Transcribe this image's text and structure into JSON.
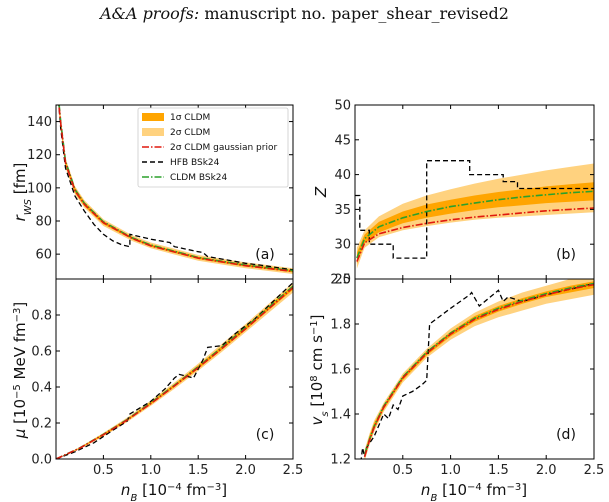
{
  "header": {
    "journal": "A&A proofs:",
    "rest": "manuscript no. paper_shear_revised2"
  },
  "colors": {
    "band1": "#ffa500",
    "band2": "#ffd27f",
    "gauss": "#e0190e",
    "hfb": "#000000",
    "cldm": "#2ca02c"
  },
  "legend": [
    {
      "key": "band1",
      "label": "1σ CLDM"
    },
    {
      "key": "band2",
      "label": "2σ CLDM"
    },
    {
      "key": "gauss",
      "label": "2σ CLDM gaussian prior"
    },
    {
      "key": "hfb",
      "label": "HFB BSk24"
    },
    {
      "key": "cldm",
      "label": "CLDM BSk24"
    }
  ],
  "chart_data": [
    {
      "type": "line",
      "panel": "(a)",
      "xlabel": "n_B [10^-4 fm^-3]",
      "ylabel": "r_WS [fm]",
      "xlim": [
        0.0,
        2.5
      ],
      "ylim": [
        45,
        150
      ],
      "xticks": [
        "0.5",
        "1.0",
        "1.5",
        "2.0",
        "2.5"
      ],
      "yticks": [
        60,
        80,
        100,
        120,
        140
      ],
      "band2": {
        "x": [
          0.02,
          0.05,
          0.1,
          0.2,
          0.3,
          0.5,
          0.8,
          1.0,
          1.5,
          2.0,
          2.5
        ],
        "low": [
          152,
          135,
          112,
          96,
          88,
          77,
          68,
          63.5,
          56,
          51.5,
          48
        ],
        "high": [
          162,
          143,
          118,
          101,
          92.5,
          81,
          71.5,
          67,
          59.5,
          55,
          51.5
        ]
      },
      "band1": {
        "x": [
          0.02,
          0.05,
          0.1,
          0.2,
          0.3,
          0.5,
          0.8,
          1.0,
          1.5,
          2.0,
          2.5
        ],
        "low": [
          154,
          137,
          113.5,
          97,
          89,
          78,
          69,
          64.5,
          57,
          52.5,
          49
        ],
        "high": [
          160,
          141,
          116.5,
          100,
          91.5,
          80,
          70.5,
          66,
          58.5,
          54,
          50.5
        ]
      },
      "series": [
        {
          "key": "gauss",
          "x": [
            0.02,
            0.05,
            0.1,
            0.2,
            0.3,
            0.5,
            0.8,
            1.0,
            1.5,
            2.0,
            2.5
          ],
          "y": [
            156,
            139,
            115,
            98.3,
            90,
            79,
            69.6,
            65,
            57.6,
            53,
            49.6
          ]
        },
        {
          "key": "cldm",
          "x": [
            0.02,
            0.05,
            0.1,
            0.2,
            0.3,
            0.5,
            0.8,
            1.0,
            1.5,
            2.0,
            2.5
          ],
          "y": [
            158,
            140,
            116,
            99,
            90.7,
            79.5,
            70,
            65.5,
            58,
            53.4,
            50
          ]
        },
        {
          "key": "hfb",
          "step": true,
          "x": [
            0.02,
            0.05,
            0.1,
            0.2,
            0.3,
            0.4,
            0.5,
            0.6,
            0.7,
            0.78,
            0.78,
            1.0,
            1.2,
            1.25,
            1.5,
            1.55,
            1.6,
            1.8,
            2.0,
            2.2,
            2.5
          ],
          "y": [
            157,
            136,
            112,
            95,
            86,
            78,
            72,
            68,
            65.5,
            64.5,
            72,
            69,
            67,
            64.5,
            61.5,
            61,
            58.5,
            56.5,
            54.5,
            53,
            50.5
          ]
        }
      ]
    },
    {
      "type": "line",
      "panel": "(b)",
      "xlabel": "n_B [10^-4 fm^-3]",
      "ylabel": "Z",
      "xlim": [
        0.0,
        2.5
      ],
      "ylim": [
        25,
        50
      ],
      "xticks": [
        "0.5",
        "1.0",
        "1.5",
        "2.0",
        "2.5"
      ],
      "yticks": [
        25,
        30,
        35,
        40,
        45,
        50
      ],
      "band2": {
        "x": [
          0.02,
          0.1,
          0.25,
          0.5,
          0.75,
          1.0,
          1.25,
          1.5,
          1.75,
          2.0,
          2.25,
          2.5
        ],
        "low": [
          26.5,
          29.5,
          31.0,
          32.0,
          32.6,
          33.1,
          33.5,
          33.8,
          34.0,
          34.2,
          34.4,
          34.6
        ],
        "high": [
          29.5,
          32.0,
          34.0,
          35.8,
          37.0,
          37.9,
          38.7,
          39.4,
          40.0,
          40.6,
          41.1,
          41.6
        ]
      },
      "band1": {
        "x": [
          0.02,
          0.1,
          0.25,
          0.5,
          0.75,
          1.0,
          1.25,
          1.5,
          1.75,
          2.0,
          2.25,
          2.5
        ],
        "low": [
          27.2,
          30.1,
          31.7,
          33.0,
          33.8,
          34.4,
          34.9,
          35.3,
          35.6,
          35.9,
          36.1,
          36.3
        ],
        "high": [
          28.8,
          31.4,
          33.2,
          34.7,
          35.7,
          36.4,
          37.0,
          37.5,
          37.9,
          38.3,
          38.6,
          38.9
        ]
      },
      "series": [
        {
          "key": "gauss",
          "x": [
            0.02,
            0.1,
            0.25,
            0.5,
            0.75,
            1.0,
            1.25,
            1.5,
            1.75,
            2.0,
            2.25,
            2.5
          ],
          "y": [
            27.5,
            30.2,
            31.5,
            32.4,
            33.0,
            33.5,
            33.9,
            34.2,
            34.5,
            34.8,
            35.0,
            35.2
          ]
        },
        {
          "key": "cldm",
          "x": [
            0.02,
            0.1,
            0.25,
            0.5,
            0.75,
            1.0,
            1.25,
            1.5,
            1.75,
            2.0,
            2.25,
            2.5
          ],
          "y": [
            28.0,
            30.8,
            32.5,
            33.8,
            34.7,
            35.4,
            35.9,
            36.4,
            36.8,
            37.1,
            37.4,
            37.6
          ]
        },
        {
          "key": "hfb",
          "step": true,
          "x": [
            0.0,
            0.05,
            0.05,
            0.15,
            0.15,
            0.2,
            0.2,
            0.4,
            0.4,
            0.75,
            0.75,
            1.2,
            1.2,
            1.55,
            1.55,
            1.7,
            1.7,
            2.5
          ],
          "y": [
            37,
            37,
            32,
            32,
            30,
            30,
            30,
            30,
            28,
            28,
            42,
            42,
            40,
            40,
            39,
            39,
            38,
            38
          ]
        }
      ]
    },
    {
      "type": "line",
      "panel": "(c)",
      "xlabel": "n_B [10^-4 fm^-3]",
      "ylabel": "μ [10^-5 MeV fm^-3]",
      "xlim": [
        0.0,
        2.5
      ],
      "ylim": [
        0.0,
        1.0
      ],
      "xticks": [
        "0.5",
        "1.0",
        "1.5",
        "2.0",
        "2.5"
      ],
      "yticks": [
        "0.0",
        "0.2",
        "0.4",
        "0.6",
        "0.8"
      ],
      "band2": {
        "x": [
          0.0,
          0.25,
          0.5,
          0.75,
          1.0,
          1.25,
          1.5,
          1.75,
          2.0,
          2.25,
          2.5
        ],
        "low": [
          0.0,
          0.055,
          0.125,
          0.205,
          0.295,
          0.39,
          0.49,
          0.595,
          0.705,
          0.815,
          0.925
        ],
        "high": [
          0.0,
          0.065,
          0.145,
          0.23,
          0.325,
          0.425,
          0.53,
          0.64,
          0.75,
          0.865,
          0.98
        ]
      },
      "band1": {
        "x": [
          0.0,
          0.25,
          0.5,
          0.75,
          1.0,
          1.25,
          1.5,
          1.75,
          2.0,
          2.25,
          2.5
        ],
        "low": [
          0.0,
          0.058,
          0.13,
          0.212,
          0.303,
          0.4,
          0.5,
          0.607,
          0.716,
          0.83,
          0.94
        ],
        "high": [
          0.0,
          0.062,
          0.14,
          0.223,
          0.317,
          0.415,
          0.52,
          0.628,
          0.74,
          0.853,
          0.965
        ]
      },
      "series": [
        {
          "key": "gauss",
          "x": [
            0.0,
            0.25,
            0.5,
            0.75,
            1.0,
            1.25,
            1.5,
            1.75,
            2.0,
            2.25,
            2.5
          ],
          "y": [
            0.0,
            0.06,
            0.135,
            0.216,
            0.308,
            0.406,
            0.508,
            0.614,
            0.724,
            0.838,
            0.952
          ]
        },
        {
          "key": "cldm",
          "x": [
            0.0,
            0.25,
            0.5,
            0.75,
            1.0,
            1.25,
            1.5,
            1.75,
            2.0,
            2.25,
            2.5
          ],
          "y": [
            0.0,
            0.061,
            0.137,
            0.219,
            0.312,
            0.41,
            0.513,
            0.62,
            0.73,
            0.845,
            0.96
          ]
        },
        {
          "key": "hfb",
          "x": [
            0.0,
            0.2,
            0.4,
            0.6,
            0.75,
            0.78,
            1.0,
            1.15,
            1.25,
            1.3,
            1.45,
            1.55,
            1.6,
            1.75,
            1.9,
            2.1,
            2.3,
            2.5
          ],
          "y": [
            0.0,
            0.04,
            0.09,
            0.16,
            0.21,
            0.25,
            0.32,
            0.39,
            0.45,
            0.47,
            0.45,
            0.55,
            0.62,
            0.63,
            0.7,
            0.78,
            0.88,
            0.98
          ]
        }
      ]
    },
    {
      "type": "line",
      "panel": "(d)",
      "xlabel": "n_B [10^-4 fm^-3]",
      "ylabel": "v_s [10^8 cm s^-1]",
      "xlim": [
        0.0,
        2.5
      ],
      "ylim": [
        1.2,
        2.0
      ],
      "xticks": [
        "0.5",
        "1.0",
        "1.5",
        "2.0",
        "2.5"
      ],
      "yticks": [
        "1.2",
        "1.4",
        "1.6",
        "1.8",
        "2.0"
      ],
      "band2": {
        "x": [
          0.1,
          0.15,
          0.2,
          0.3,
          0.5,
          0.75,
          1.0,
          1.25,
          1.5,
          1.75,
          2.0,
          2.25,
          2.5
        ],
        "low": [
          1.19,
          1.26,
          1.32,
          1.41,
          1.54,
          1.65,
          1.73,
          1.79,
          1.83,
          1.86,
          1.89,
          1.91,
          1.93
        ],
        "high": [
          1.24,
          1.31,
          1.37,
          1.45,
          1.58,
          1.69,
          1.78,
          1.85,
          1.9,
          1.94,
          1.97,
          2.0,
          2.02
        ]
      },
      "band1": {
        "x": [
          0.1,
          0.15,
          0.2,
          0.3,
          0.5,
          0.75,
          1.0,
          1.25,
          1.5,
          1.75,
          2.0,
          2.25,
          2.5
        ],
        "low": [
          1.2,
          1.27,
          1.33,
          1.42,
          1.55,
          1.66,
          1.745,
          1.81,
          1.855,
          1.89,
          1.92,
          1.94,
          1.96
        ],
        "high": [
          1.23,
          1.3,
          1.36,
          1.44,
          1.57,
          1.68,
          1.765,
          1.835,
          1.88,
          1.915,
          1.945,
          1.97,
          1.99
        ]
      },
      "series": [
        {
          "key": "gauss",
          "x": [
            0.1,
            0.15,
            0.2,
            0.3,
            0.5,
            0.75,
            1.0,
            1.25,
            1.5,
            1.75,
            2.0,
            2.25,
            2.5
          ],
          "y": [
            1.21,
            1.28,
            1.34,
            1.43,
            1.56,
            1.67,
            1.755,
            1.82,
            1.865,
            1.9,
            1.93,
            1.955,
            1.975
          ]
        },
        {
          "key": "cldm",
          "x": [
            0.1,
            0.15,
            0.2,
            0.3,
            0.5,
            0.75,
            1.0,
            1.25,
            1.5,
            1.75,
            2.0,
            2.25,
            2.5
          ],
          "y": [
            1.22,
            1.285,
            1.345,
            1.435,
            1.565,
            1.675,
            1.76,
            1.825,
            1.87,
            1.905,
            1.935,
            1.96,
            1.98
          ]
        },
        {
          "key": "hfb",
          "x": [
            0.05,
            0.08,
            0.1,
            0.12,
            0.2,
            0.3,
            0.35,
            0.4,
            0.45,
            0.5,
            0.6,
            0.7,
            0.75,
            0.78,
            1.0,
            1.2,
            1.22,
            1.3,
            1.5,
            1.55,
            1.6,
            1.75,
            2.0,
            2.2,
            2.5
          ],
          "y": [
            1.15,
            1.25,
            1.21,
            1.25,
            1.3,
            1.4,
            1.38,
            1.44,
            1.42,
            1.48,
            1.5,
            1.53,
            1.55,
            1.8,
            1.87,
            1.93,
            1.94,
            1.88,
            1.95,
            1.9,
            1.92,
            1.9,
            1.93,
            1.95,
            1.98
          ]
        }
      ]
    }
  ]
}
